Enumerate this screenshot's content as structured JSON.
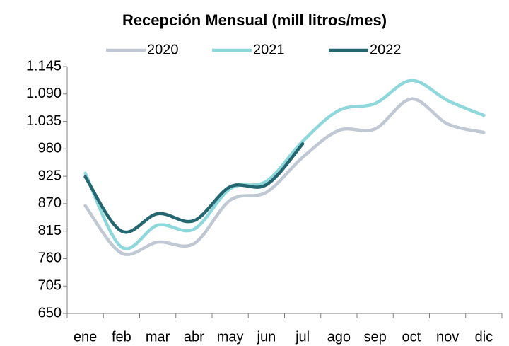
{
  "chart_data": {
    "type": "line",
    "title": "Recepción Mensual (mill litros/mes)",
    "categories": [
      "ene",
      "feb",
      "mar",
      "abr",
      "may",
      "jun",
      "jul",
      "ago",
      "sep",
      "oct",
      "nov",
      "dic"
    ],
    "series": [
      {
        "name": "2020",
        "color": "#c0c8d4",
        "values": [
          866,
          771,
          793,
          790,
          877,
          893,
          963,
          1017,
          1020,
          1080,
          1030,
          1013
        ]
      },
      {
        "name": "2021",
        "color": "#8ed8dc",
        "values": [
          931,
          783,
          827,
          819,
          900,
          915,
          995,
          1057,
          1071,
          1117,
          1077,
          1047
        ]
      },
      {
        "name": "2022",
        "color": "#256770",
        "values": [
          924,
          815,
          850,
          836,
          904,
          908,
          990,
          null,
          null,
          null,
          null,
          null
        ]
      }
    ],
    "ylim": [
      650,
      1145
    ],
    "yticks": [
      650,
      705,
      760,
      815,
      870,
      925,
      980,
      {
        "value": 1035,
        "label": "1.035"
      },
      {
        "value": 1090,
        "label": "1.090"
      },
      {
        "value": 1145,
        "label": "1.145"
      }
    ],
    "legend": "top"
  }
}
